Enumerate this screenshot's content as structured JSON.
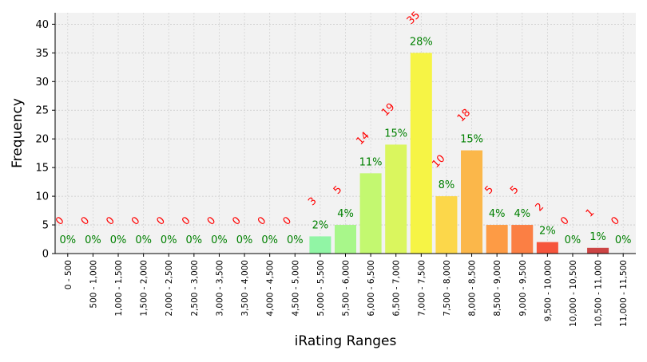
{
  "chart_data": {
    "type": "bar",
    "xlabel": "iRating Ranges",
    "ylabel": "Frequency",
    "ylim": [
      0,
      42
    ],
    "yticks": [
      0,
      5,
      10,
      15,
      20,
      25,
      30,
      35,
      40
    ],
    "grid": true,
    "categories": [
      "0 - 500",
      "500 - 1,000",
      "1,000 - 1,500",
      "1,500 - 2,000",
      "2,000 - 2,500",
      "2,500 - 3,000",
      "3,000 - 3,500",
      "3,500 - 4,000",
      "4,000 - 4,500",
      "4,500 - 5,000",
      "5,000 - 5,500",
      "5,500 - 6,000",
      "6,000 - 6,500",
      "6,500 - 7,000",
      "7,000 - 7,500",
      "7,500 - 8,000",
      "8,000 - 8,500",
      "8,500 - 9,000",
      "9,000 - 9,500",
      "9,500 - 10,000",
      "10,000 - 10,500",
      "10,500 - 11,000",
      "11,000 - 11,500"
    ],
    "values": [
      0,
      0,
      0,
      0,
      0,
      0,
      0,
      0,
      0,
      0,
      3,
      5,
      14,
      19,
      35,
      10,
      18,
      5,
      5,
      2,
      0,
      1,
      0
    ],
    "percent_labels": [
      "0%",
      "0%",
      "0%",
      "0%",
      "0%",
      "0%",
      "0%",
      "0%",
      "0%",
      "0%",
      "2%",
      "4%",
      "11%",
      "15%",
      "28%",
      "8%",
      "15%",
      "4%",
      "4%",
      "2%",
      "0%",
      "1%",
      "0%"
    ],
    "bar_colors": [
      "#a50026",
      "#a50026",
      "#a50026",
      "#a50026",
      "#a50026",
      "#a50026",
      "#a50026",
      "#a50026",
      "#a50026",
      "#a50026",
      "#91f5a5",
      "#a8f78a",
      "#c3f870",
      "#daf65e",
      "#f6f445",
      "#fcd74a",
      "#fbb74a",
      "#fd9b45",
      "#fb7f44",
      "#f6553c",
      "#e83b35",
      "#cc4444",
      "#b52a2a"
    ],
    "count_label_color": "#ff0000",
    "percent_label_color": "#008000",
    "plot_background": "#f2f2f2"
  }
}
